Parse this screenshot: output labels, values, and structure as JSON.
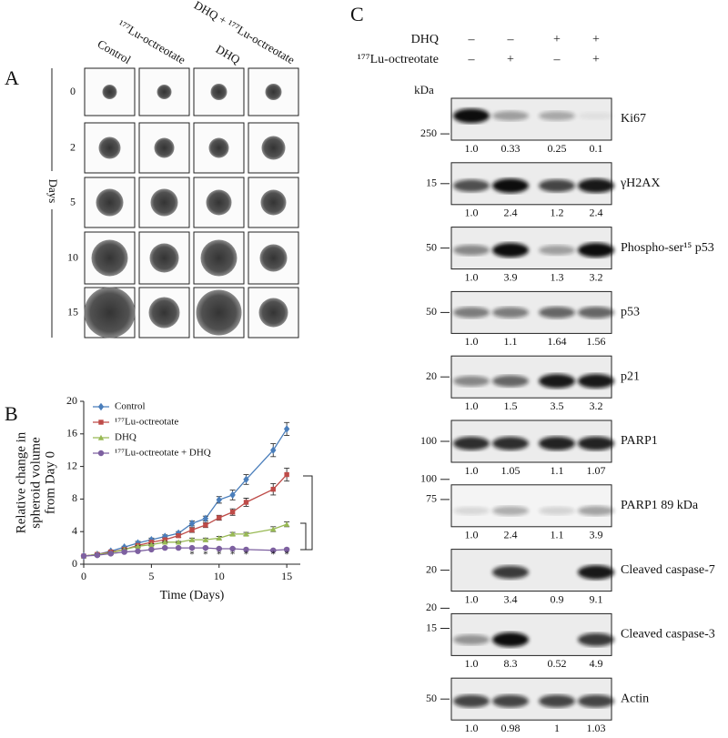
{
  "panel_a": {
    "label": "A",
    "columns": [
      "Control",
      "¹⁷⁷Lu-octreotate",
      "DHQ",
      "DHQ + ¹⁷⁷Lu-octreotate"
    ],
    "rows": [
      "0",
      "2",
      "5",
      "10",
      "15"
    ],
    "axis_label": "Days"
  },
  "chart_data": {
    "type": "line",
    "panel_label": "B",
    "x_label": "Time (Days)",
    "y_label": [
      "Relative change in",
      "spheroid volume",
      "from Day 0"
    ],
    "x": [
      0,
      1,
      2,
      3,
      4,
      5,
      6,
      7,
      8,
      9,
      10,
      11,
      12,
      14,
      15
    ],
    "series": [
      {
        "name": "Control",
        "color": "#4a7ebb",
        "marker": "diamond",
        "values": [
          1,
          1.2,
          1.6,
          2.1,
          2.6,
          3.0,
          3.4,
          3.8,
          5.0,
          5.6,
          7.9,
          8.5,
          10.4,
          14.0,
          16.6
        ],
        "errors": [
          0,
          0.1,
          0.1,
          0.1,
          0.2,
          0.2,
          0.2,
          0.2,
          0.3,
          0.3,
          0.4,
          0.6,
          0.6,
          0.8,
          0.8
        ]
      },
      {
        "name": "¹⁷⁷Lu-octreotate",
        "color": "#be4b48",
        "marker": "square",
        "values": [
          1,
          1.2,
          1.5,
          1.8,
          2.3,
          2.7,
          3.0,
          3.5,
          4.2,
          4.8,
          5.7,
          6.4,
          7.6,
          9.2,
          11.0
        ],
        "errors": [
          0,
          0.1,
          0.1,
          0.1,
          0.1,
          0.2,
          0.2,
          0.2,
          0.3,
          0.3,
          0.3,
          0.4,
          0.5,
          0.7,
          0.8
        ]
      },
      {
        "name": "DHQ",
        "color": "#98b954",
        "marker": "triangle",
        "values": [
          1,
          1.2,
          1.4,
          1.8,
          2.2,
          2.4,
          2.7,
          2.7,
          3.0,
          3.0,
          3.2,
          3.7,
          3.7,
          4.3,
          4.9
        ],
        "errors": [
          0,
          0.1,
          0.1,
          0.1,
          0.1,
          0.1,
          0.1,
          0.1,
          0.2,
          0.2,
          0.2,
          0.2,
          0.2,
          0.3,
          0.3
        ]
      },
      {
        "name": "¹⁷⁷Lu-octreotate + DHQ",
        "color": "#7d60a0",
        "marker": "circle",
        "values": [
          1,
          1.1,
          1.3,
          1.5,
          1.6,
          1.8,
          2.0,
          2.0,
          2.0,
          2.0,
          1.9,
          1.9,
          1.8,
          1.7,
          1.8
        ],
        "errors": [
          0,
          0.1,
          0.1,
          0.1,
          0.1,
          0.1,
          0.1,
          0.1,
          0.1,
          0.1,
          0.1,
          0.1,
          0.1,
          0.1,
          0.1
        ]
      }
    ],
    "xlim": [
      0,
      16
    ],
    "ylim": [
      0,
      20
    ],
    "xticks": [
      0,
      5,
      10,
      15
    ],
    "yticks": [
      0,
      4,
      8,
      12,
      16,
      20
    ],
    "legend": "upper left",
    "annotations": [
      {
        "x": 8,
        "text": "*"
      },
      {
        "x": 9,
        "text": "*"
      },
      {
        "x": 10,
        "text": "*"
      },
      {
        "x": 11,
        "text": "*"
      },
      {
        "x": 12,
        "text": "*"
      },
      {
        "x": 14,
        "text": "*"
      },
      {
        "x": 15,
        "text": "*"
      }
    ]
  },
  "panel_c": {
    "label": "C",
    "conditions": [
      {
        "name": "DHQ",
        "signs": [
          "–",
          "–",
          "+",
          "+"
        ]
      },
      {
        "name": "¹⁷⁷Lu-octreotate",
        "signs": [
          "–",
          "+",
          "–",
          "+"
        ]
      }
    ],
    "unit": "kDa",
    "blots": [
      {
        "name": "Ki67",
        "markers": [
          "250"
        ],
        "quant": [
          "1.0",
          "0.33",
          "0.25",
          "0.1"
        ]
      },
      {
        "name": "γH2AX",
        "markers": [
          "15"
        ],
        "quant": [
          "1.0",
          "2.4",
          "1.2",
          "2.4"
        ]
      },
      {
        "name": "Phospho-ser¹⁵ p53",
        "markers": [
          "50"
        ],
        "quant": [
          "1.0",
          "3.9",
          "1.3",
          "3.2"
        ]
      },
      {
        "name": "p53",
        "markers": [
          "50"
        ],
        "quant": [
          "1.0",
          "1.1",
          "1.64",
          "1.56"
        ]
      },
      {
        "name": "p21",
        "markers": [
          "20"
        ],
        "quant": [
          "1.0",
          "1.5",
          "3.5",
          "3.2"
        ]
      },
      {
        "name": "PARP1",
        "markers": [
          "100"
        ],
        "quant": [
          "1.0",
          "1.05",
          "1.1",
          "1.07"
        ]
      },
      {
        "name": "PARP1 89 kDa",
        "markers": [
          "100",
          "75"
        ],
        "quant": [
          "1.0",
          "2.4",
          "1.1",
          "3.9"
        ]
      },
      {
        "name": "Cleaved caspase-7",
        "markers": [
          "20"
        ],
        "quant": [
          "1.0",
          "3.4",
          "0.9",
          "9.1"
        ]
      },
      {
        "name": "Cleaved caspase-3",
        "markers": [
          "20",
          "15"
        ],
        "quant": [
          "1.0",
          "8.3",
          "0.52",
          "4.9"
        ]
      },
      {
        "name": "Actin",
        "markers": [
          "50"
        ],
        "quant": [
          "1.0",
          "0.98",
          "1",
          "1.03"
        ]
      }
    ]
  }
}
